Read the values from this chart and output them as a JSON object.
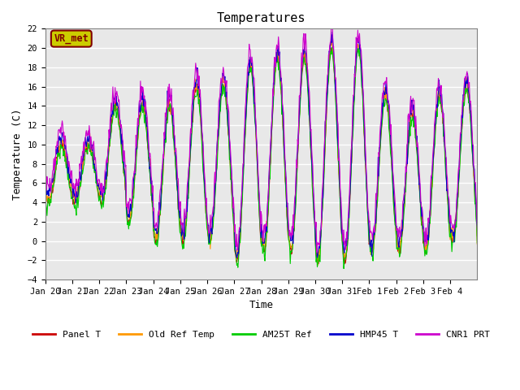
{
  "title": "Temperatures",
  "ylabel": "Temperature (C)",
  "xlabel": "Time",
  "ylim": [
    -4,
    22
  ],
  "yticks": [
    -4,
    -2,
    0,
    2,
    4,
    6,
    8,
    10,
    12,
    14,
    16,
    18,
    20,
    22
  ],
  "xtick_labels": [
    "Jan 20",
    "Jan 21",
    "Jan 22",
    "Jan 23",
    "Jan 24",
    "Jan 25",
    "Jan 26",
    "Jan 27",
    "Jan 28",
    "Jan 29",
    "Jan 30",
    "Jan 31",
    "Feb 1",
    "Feb 2",
    "Feb 3",
    "Feb 4"
  ],
  "series_names": [
    "Panel T",
    "Old Ref Temp",
    "AM25T Ref",
    "HMP45 T",
    "CNR1 PRT"
  ],
  "series_colors": [
    "#cc0000",
    "#ff9900",
    "#00cc00",
    "#0000cc",
    "#cc00cc"
  ],
  "bg_color": "#e8e8e8",
  "annotation": "VR_met",
  "annotation_box_color": "#cccc00",
  "annotation_text_color": "#800000"
}
